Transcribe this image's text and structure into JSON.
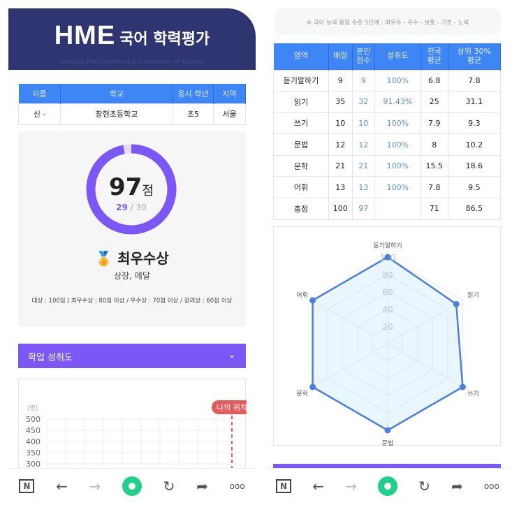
{
  "header": {
    "brand": "HME",
    "title": "국어 학력평가",
    "subtitle": "Haebub Measurement & Evaluation of Korean"
  },
  "info": {
    "headers": [
      "이름",
      "학교",
      "응시 학년",
      "지역"
    ],
    "values": [
      "신 -",
      "창현초등학교",
      "초5",
      "서울"
    ]
  },
  "score": {
    "value": "97",
    "unit": "점",
    "correct": "29",
    "total": "30",
    "progress": 0.97,
    "award": "최우수상",
    "award_icon": "medal-icon",
    "reward": "상장, 메달",
    "criteria": "대상 : 100점 / 최우수상 : 80점 이상 / 우수상 : 70점 이상 / 장려상 : 60점 이상"
  },
  "section": {
    "title": "학업 성취도"
  },
  "dist_chart": {
    "unit": "(명)",
    "yticks": [
      "500",
      "450",
      "400",
      "350",
      "300"
    ],
    "marker": "나의 위치"
  },
  "note": "※ 국어 능력 종합 수준 5단계 : 최우수 - 우수 - 보통 - 기초 - 노력",
  "results": {
    "headers": [
      "영역",
      "배점",
      "본인\n점수",
      "성취도",
      "전국\n평균",
      "상위 30%\n평균"
    ],
    "rows": [
      [
        "듣기말하기",
        "9",
        "9",
        "100%",
        "6.8",
        "7.8"
      ],
      [
        "읽기",
        "35",
        "32",
        "91.43%",
        "25",
        "31.1"
      ],
      [
        "쓰기",
        "10",
        "10",
        "100%",
        "7.9",
        "9.3"
      ],
      [
        "문법",
        "12",
        "12",
        "100%",
        "8",
        "10.2"
      ],
      [
        "문학",
        "21",
        "21",
        "100%",
        "15.5",
        "18.6"
      ],
      [
        "어휘",
        "13",
        "13",
        "100%",
        "7.8",
        "9.5"
      ],
      [
        "총점",
        "100",
        "97",
        "",
        "71",
        "86.5"
      ]
    ]
  },
  "chart_data": {
    "type": "radar",
    "categories": [
      "듣기말하기",
      "읽기",
      "쓰기",
      "문법",
      "문학",
      "어휘"
    ],
    "values": [
      100,
      91.43,
      100,
      100,
      100,
      100
    ],
    "rlim": [
      0,
      100
    ],
    "ticks": [
      "20",
      "40",
      "60",
      "80",
      "100"
    ],
    "color": "#4a7fe0"
  },
  "colors": {
    "navy": "#2f3570",
    "blue": "#3e86f5",
    "purple": "#7b58f5",
    "marker": "#e55a5a"
  },
  "nav": {
    "icons": [
      "naver-icon",
      "back-icon",
      "forward-icon",
      "home-icon",
      "reload-icon",
      "share-icon",
      "more-icon"
    ]
  }
}
